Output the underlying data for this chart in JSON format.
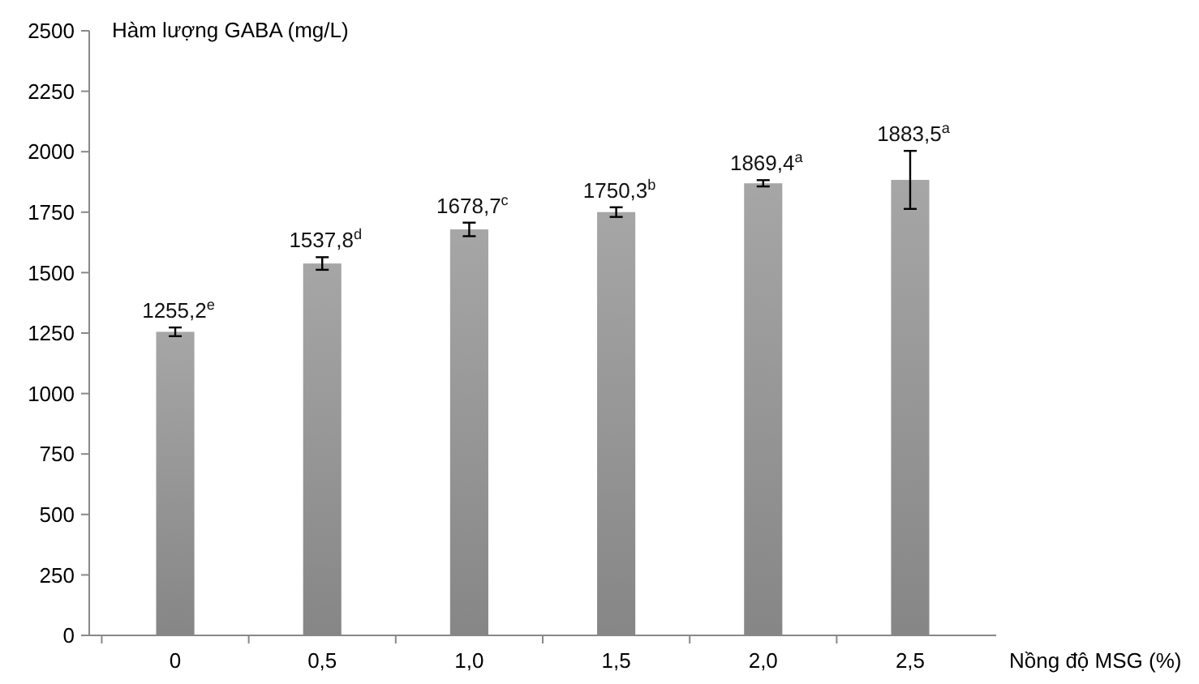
{
  "chart_data": {
    "type": "bar",
    "xlabel": "Nồng độ MSG (%)",
    "ylabel": "Hàm lượng GABA (mg/L)",
    "categories": [
      "0",
      "0,5",
      "1,0",
      "1,5",
      "2,0",
      "2,5"
    ],
    "values": [
      1255.2,
      1537.8,
      1678.7,
      1750.3,
      1869.4,
      1883.5
    ],
    "errors": [
      18,
      26,
      28,
      20,
      13,
      120
    ],
    "value_labels": [
      "1255,2$^{e}$",
      "1537,8$^{d}$",
      "1678,7$^{c}$",
      "1750,3$^{b}$",
      "1869,4$^{a}$",
      "1883,5$^{a}$"
    ],
    "color": "#a6a6a6",
    "ylim": [
      0,
      2500
    ],
    "yticks": [
      0,
      250,
      500,
      750,
      1000,
      1250,
      1500,
      1750,
      2000,
      2250,
      2500
    ],
    "grid": false
  }
}
